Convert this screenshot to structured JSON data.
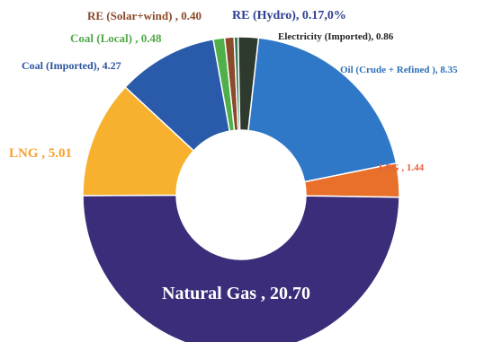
{
  "chart_data": {
    "type": "pie",
    "style": "donut",
    "title": "",
    "slices": [
      {
        "label": "RE (Solar+wind) , 0.40",
        "name": "RE (Solar+wind)",
        "value": 0.4,
        "color": "#8B4A2A",
        "label_color": "#8B4A2A"
      },
      {
        "label": "RE (Hydro), 0.17,0%",
        "name": "RE (Hydro)",
        "value": 0.17,
        "color": "#2F7A58",
        "label_color": "#2E3F8F"
      },
      {
        "label": "Electricity (Imported), 0.86",
        "name": "Electricity (Imported)",
        "value": 0.86,
        "color": "#2E3A2E",
        "label_color": "#222222"
      },
      {
        "label": "Oil (Crude + Refined ), 8.35",
        "name": "Oil (Crude + Refined )",
        "value": 8.35,
        "color": "#2F78C8",
        "label_color": "#2F6FB8"
      },
      {
        "label": "LPG , 1.44",
        "name": "LPG",
        "value": 1.44,
        "color": "#E8702A",
        "label_color": "#E8603A"
      },
      {
        "label": "Natural Gas , 20.70",
        "name": "Natural Gas",
        "value": 20.7,
        "color": "#3B2D7A",
        "label_color": "#FFFFFF"
      },
      {
        "label": "LNG , 5.01",
        "name": "LNG",
        "value": 5.01,
        "color": "#F7B12E",
        "label_color": "#F7A030"
      },
      {
        "label": "Coal (Imported), 4.27",
        "name": "Coal (Imported)",
        "value": 4.27,
        "color": "#2A5BAA",
        "label_color": "#2A52A0"
      },
      {
        "label": "Coal (Local) , 0.48",
        "name": "Coal (Local)",
        "value": 0.48,
        "color": "#4FAF48",
        "label_color": "#4FA848"
      }
    ]
  }
}
